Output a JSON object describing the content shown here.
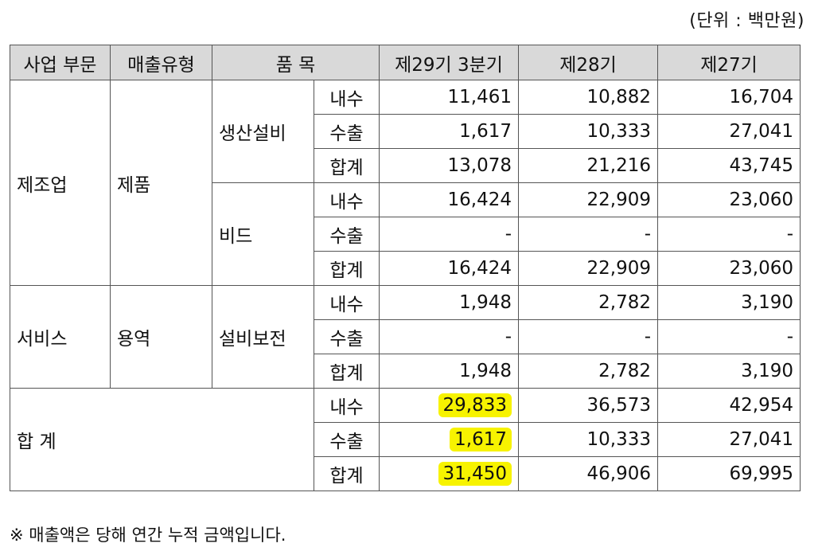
{
  "unit_note": "(단위 : 백만원)",
  "headers": {
    "segment": "사업 부문",
    "sales_type": "매출유형",
    "item": "품 목",
    "q29": "제29기 3분기",
    "y28": "제28기",
    "y27": "제27기"
  },
  "groups": {
    "manufacturing": {
      "segment": "제조업",
      "sales_type": "제품"
    },
    "service": {
      "segment": "서비스",
      "sales_type": "용역"
    },
    "total": {
      "label": "합 계"
    }
  },
  "items": {
    "equipment": "생산설비",
    "bead": "비드",
    "maintenance": "설비보전"
  },
  "row_labels": {
    "domestic": "내수",
    "export": "수출",
    "subtotal": "합계"
  },
  "data": {
    "equipment": {
      "domestic": [
        "11,461",
        "10,882",
        "16,704"
      ],
      "export": [
        "1,617",
        "10,333",
        "27,041"
      ],
      "subtotal": [
        "13,078",
        "21,216",
        "43,745"
      ]
    },
    "bead": {
      "domestic": [
        "16,424",
        "22,909",
        "23,060"
      ],
      "export": [
        "-",
        "-",
        "-"
      ],
      "subtotal": [
        "16,424",
        "22,909",
        "23,060"
      ]
    },
    "maintenance": {
      "domestic": [
        "1,948",
        "2,782",
        "3,190"
      ],
      "export": [
        "-",
        "-",
        "-"
      ],
      "subtotal": [
        "1,948",
        "2,782",
        "3,190"
      ]
    },
    "total": {
      "domestic": [
        "29,833",
        "36,573",
        "42,954"
      ],
      "export": [
        "1,617",
        "10,333",
        "27,041"
      ],
      "subtotal": [
        "31,450",
        "46,906",
        "69,995"
      ]
    }
  },
  "highlight_color": "#f7f300",
  "footnote": "※ 매출액은 당해 연간 누적 금액입니다."
}
